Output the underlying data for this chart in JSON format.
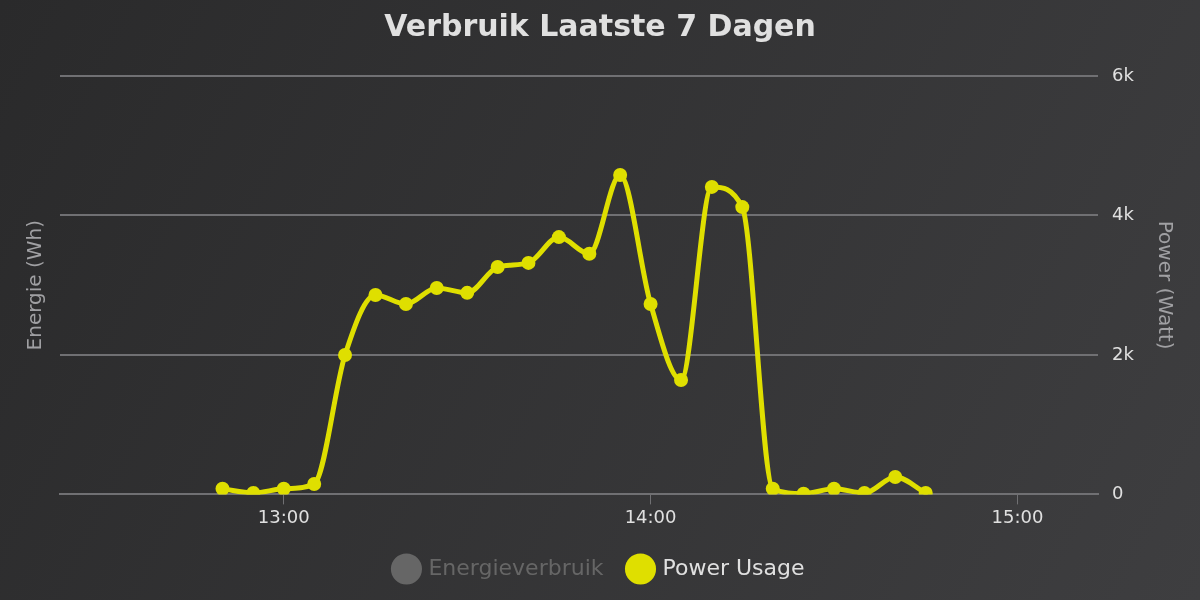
{
  "chart_data": {
    "type": "line",
    "title": "Verbruik Laatste 7 Dagen",
    "ylabel": "Energie (Wh)",
    "y2label": "Power (Watt)",
    "x": [
      12.833,
      12.917,
      13,
      13.083,
      13.167,
      13.25,
      13.333,
      13.417,
      13.5,
      13.583,
      13.667,
      13.75,
      13.833,
      13.917,
      14,
      14.083,
      14.167,
      14.25,
      14.333,
      14.417,
      14.5,
      14.583,
      14.667,
      14.75
    ],
    "series": [
      {
        "name": "Energieverbruik",
        "color": "#666666",
        "type": "scatter",
        "values": [
          null,
          null,
          null,
          null,
          null,
          null,
          null,
          null,
          null,
          null,
          null,
          null,
          null,
          null,
          null,
          null,
          null,
          null,
          null,
          null,
          null,
          null,
          null,
          null
        ]
      },
      {
        "name": "Power Usage",
        "color": "#dfdf00",
        "axis": "y2",
        "values": [
          80,
          20,
          80,
          150,
          2000,
          2860,
          2730,
          2960,
          2890,
          3260,
          3320,
          3690,
          3450,
          4580,
          2730,
          1640,
          4410,
          4120,
          80,
          10,
          80,
          20,
          250,
          20
        ]
      }
    ],
    "xlim": [
      12.39,
      15.22
    ],
    "xticks": [
      {
        "value": 13,
        "label": "13:00"
      },
      {
        "value": 14,
        "label": "14:00"
      },
      {
        "value": 15,
        "label": "15:00"
      }
    ],
    "y2lim": [
      0,
      6000
    ],
    "y2ticks": [
      {
        "value": 0,
        "label": "0"
      },
      {
        "value": 2000,
        "label": "2k"
      },
      {
        "value": 4000,
        "label": "4k"
      },
      {
        "value": 6000,
        "label": "6k"
      }
    ],
    "grid": "y",
    "legend": "bottom",
    "marker": "circle",
    "line_style": "solid"
  }
}
